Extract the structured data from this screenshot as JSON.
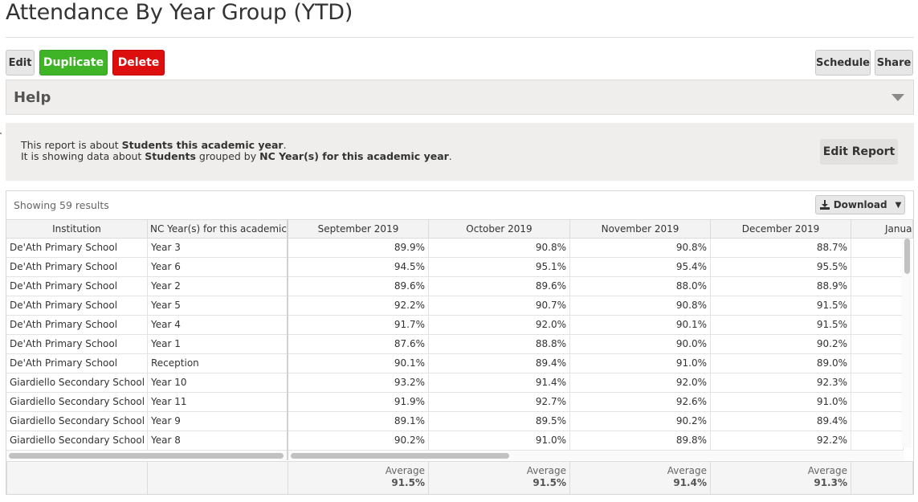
{
  "page": {
    "title": "Attendance By Year Group (YTD)"
  },
  "toolbar": {
    "edit_label": "Edit",
    "duplicate_label": "Duplicate",
    "delete_label": "Delete",
    "schedule_label": "Schedule",
    "share_label": "Share"
  },
  "help": {
    "title": "Help",
    "icon": "caret-down-icon"
  },
  "info": {
    "line1_prefix": "This report is about ",
    "line1_bold": "Students this academic year",
    "line1_suffix": ".",
    "line2_prefix": "It is showing data about ",
    "line2_bold1": "Students",
    "line2_middle": " grouped by ",
    "line2_bold2": "NC Year(s) for this academic year",
    "line2_suffix": ".",
    "edit_report_label": "Edit Report"
  },
  "results": {
    "showing": "Showing 59 results",
    "download_label": "Download",
    "download_icon": "download-icon"
  },
  "table": {
    "columns": [
      "Institution",
      "NC Year(s) for this academic...",
      "September 2019",
      "October 2019",
      "November 2019",
      "December 2019",
      "Januar"
    ],
    "rows": [
      [
        "De'Ath Primary School",
        "Year 3",
        "89.9%",
        "90.8%",
        "90.8%",
        "88.7%"
      ],
      [
        "De'Ath Primary School",
        "Year 6",
        "94.5%",
        "95.1%",
        "95.4%",
        "95.5%"
      ],
      [
        "De'Ath Primary School",
        "Year 2",
        "89.6%",
        "89.6%",
        "88.0%",
        "88.9%"
      ],
      [
        "De'Ath Primary School",
        "Year 5",
        "92.2%",
        "90.7%",
        "90.8%",
        "91.5%"
      ],
      [
        "De'Ath Primary School",
        "Year 4",
        "91.7%",
        "92.0%",
        "90.1%",
        "91.5%"
      ],
      [
        "De'Ath Primary School",
        "Year 1",
        "87.6%",
        "88.8%",
        "90.0%",
        "90.2%"
      ],
      [
        "De'Ath Primary School",
        "Reception",
        "90.1%",
        "89.4%",
        "91.0%",
        "89.0%"
      ],
      [
        "Giardiello Secondary School",
        "Year 10",
        "93.2%",
        "91.4%",
        "92.0%",
        "92.3%"
      ],
      [
        "Giardiello Secondary School",
        "Year 11",
        "91.9%",
        "92.7%",
        "92.6%",
        "91.0%"
      ],
      [
        "Giardiello Secondary School",
        "Year 9",
        "89.1%",
        "89.5%",
        "90.2%",
        "89.4%"
      ],
      [
        "Giardiello Secondary School",
        "Year 8",
        "90.2%",
        "91.0%",
        "89.8%",
        "92.2%"
      ]
    ],
    "footer": {
      "label": "Average",
      "values": [
        "91.5%",
        "91.5%",
        "91.4%",
        "91.3%"
      ]
    }
  }
}
